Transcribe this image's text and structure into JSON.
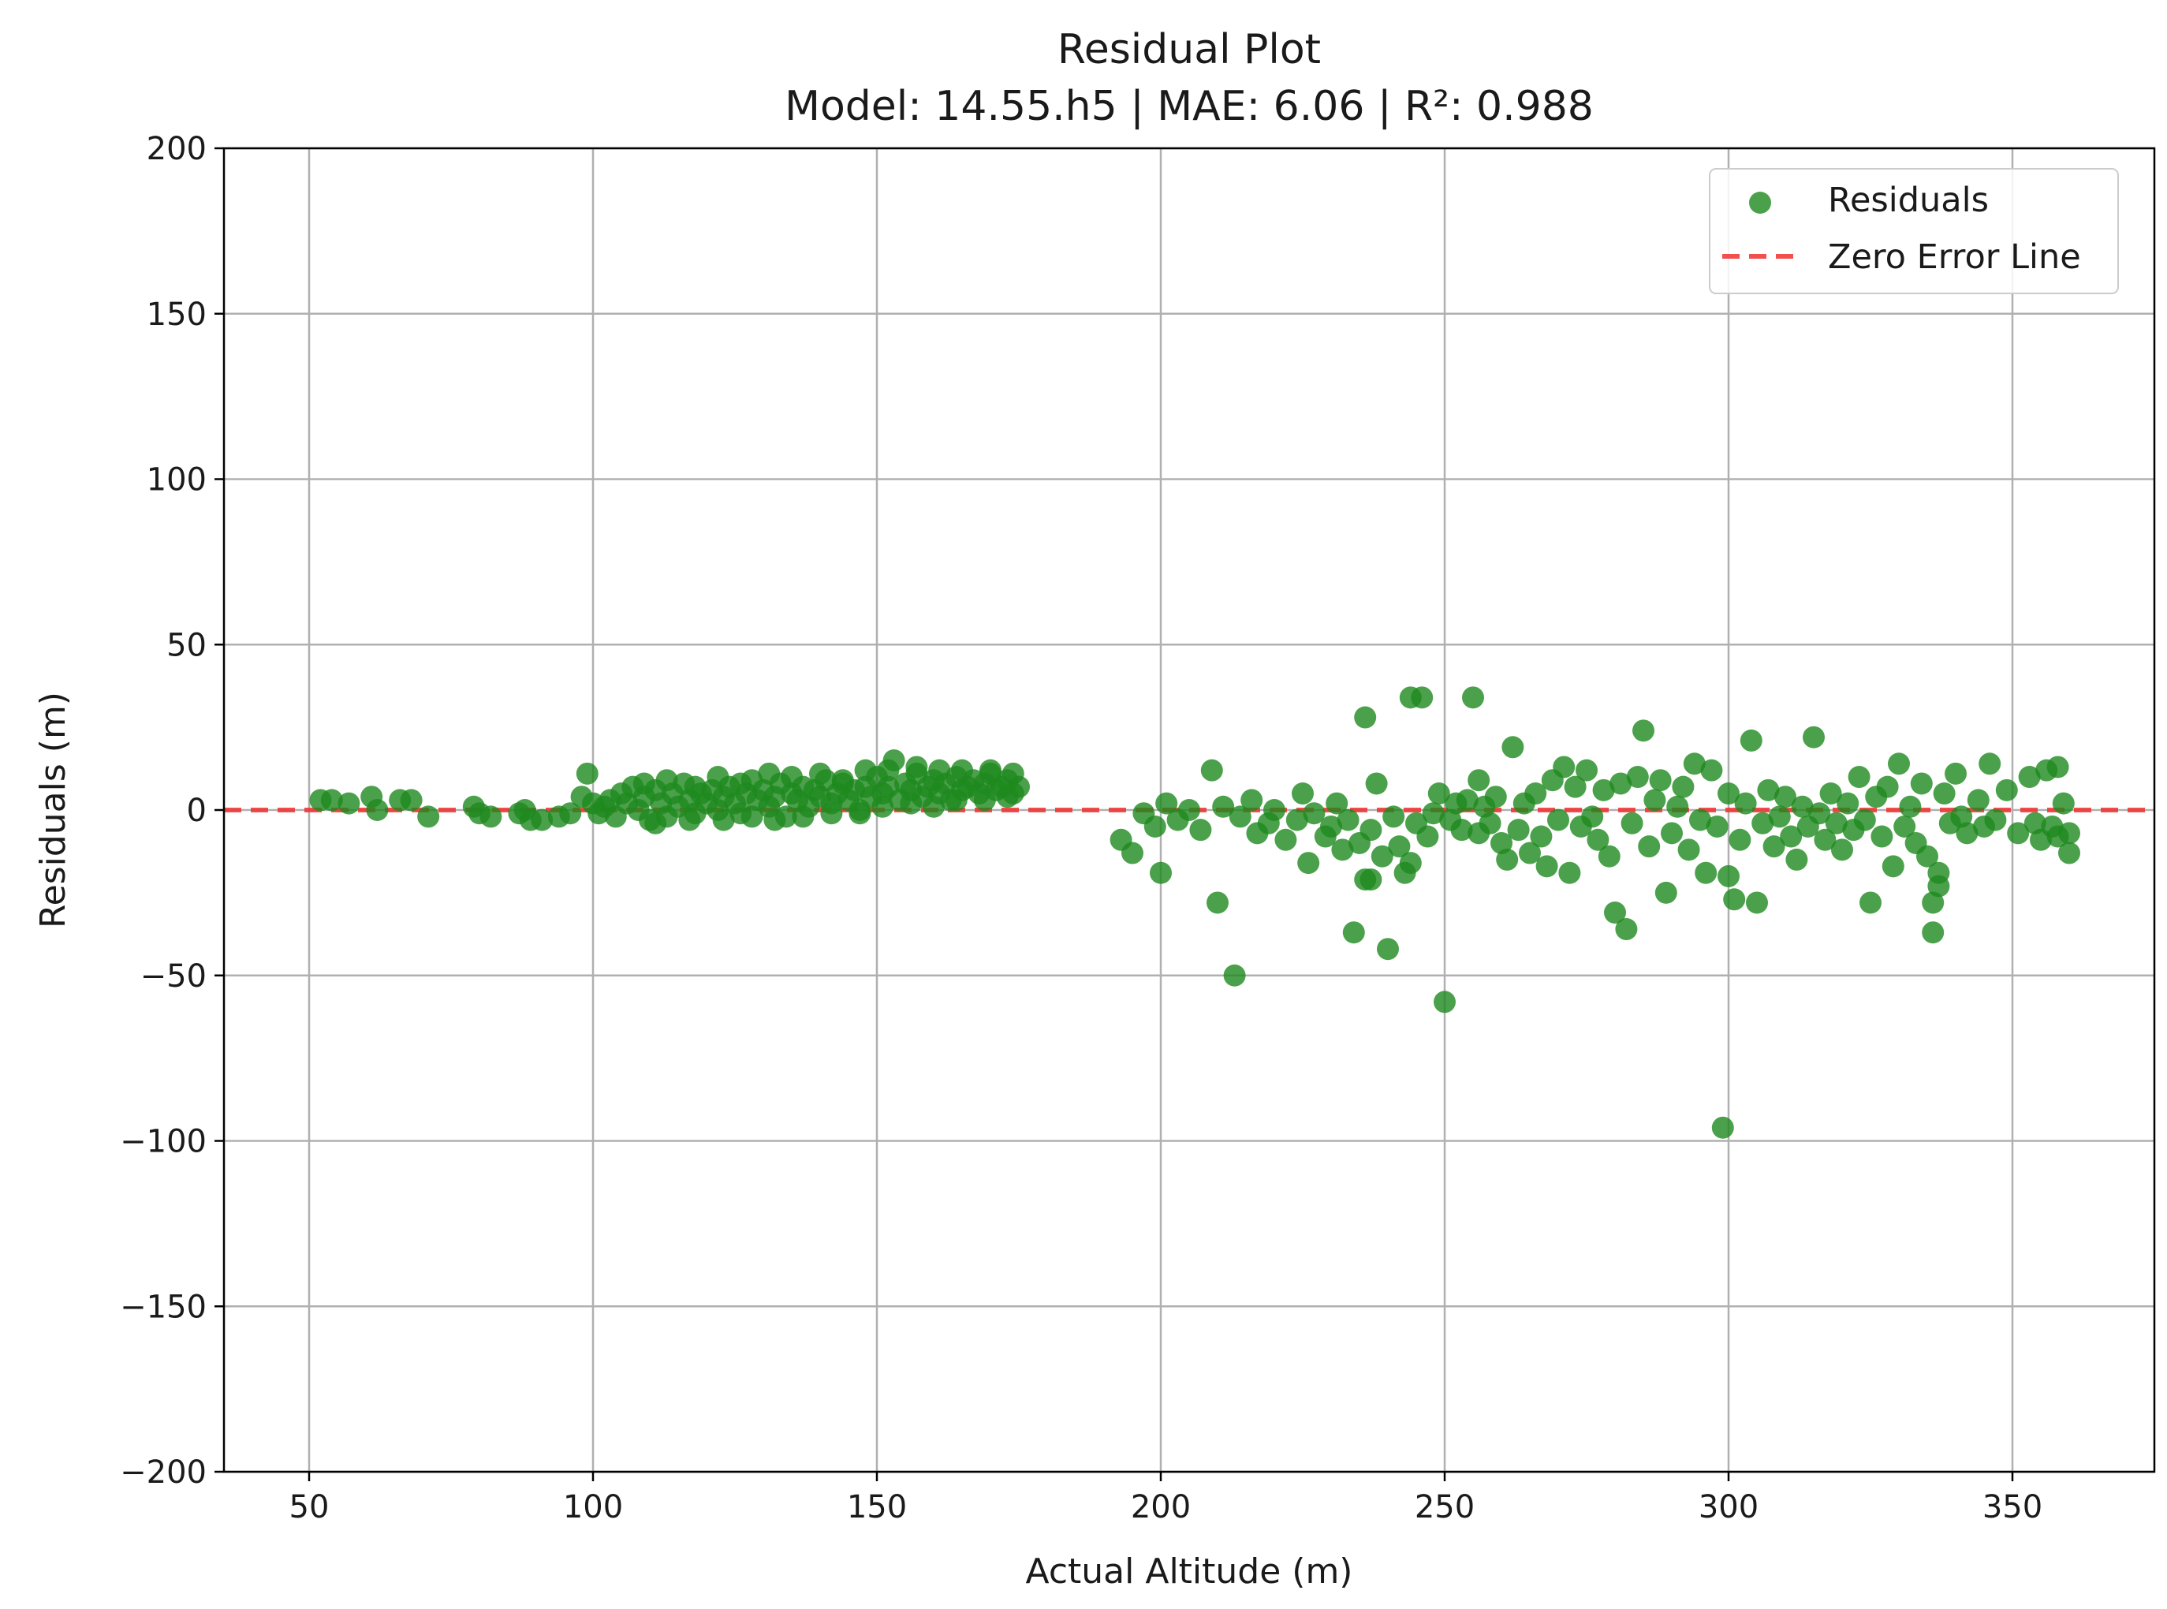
{
  "colors": {
    "points": "#1e8a1e",
    "zero_line": "#f03030",
    "grid": "#b0b0b0",
    "axes": "#000000"
  },
  "chart_data": {
    "type": "scatter",
    "title": "Residual Plot",
    "subtitle": "Model: 14.55.h5 | MAE: 6.06 | R²: 0.988",
    "xlabel": "Actual Altitude (m)",
    "ylabel": "Residuals (m)",
    "xlim": [
      35,
      375
    ],
    "ylim": [
      -200,
      200
    ],
    "xticks": [
      50,
      100,
      150,
      200,
      250,
      300,
      350
    ],
    "yticks": [
      -200,
      -150,
      -100,
      -50,
      0,
      50,
      100,
      150,
      200
    ],
    "xtick_labels": [
      "50",
      "100",
      "150",
      "200",
      "250",
      "300",
      "350"
    ],
    "ytick_labels": [
      "−200",
      "−150",
      "−100",
      "−50",
      "0",
      "50",
      "100",
      "150",
      "200"
    ],
    "grid": true,
    "legend_position": "top-right",
    "legend": {
      "scatter_label": "Residuals",
      "line_label": "Zero Error Line"
    },
    "reference_line": {
      "y": 0,
      "style": "dashed"
    },
    "series": [
      {
        "name": "Residuals",
        "points": [
          [
            52,
            3
          ],
          [
            54,
            3
          ],
          [
            57,
            2
          ],
          [
            61,
            4
          ],
          [
            62,
            0
          ],
          [
            66,
            3
          ],
          [
            68,
            3
          ],
          [
            71,
            -2
          ],
          [
            79,
            1
          ],
          [
            80,
            -1
          ],
          [
            82,
            -2
          ],
          [
            87,
            -1
          ],
          [
            88,
            0
          ],
          [
            89,
            -3
          ],
          [
            91,
            -3
          ],
          [
            94,
            -2
          ],
          [
            96,
            -1
          ],
          [
            98,
            4
          ],
          [
            99,
            11
          ],
          [
            100,
            2
          ],
          [
            101,
            -1
          ],
          [
            102,
            1
          ],
          [
            103,
            3
          ],
          [
            104,
            -2
          ],
          [
            105,
            5
          ],
          [
            106,
            2
          ],
          [
            107,
            7
          ],
          [
            108,
            0
          ],
          [
            109,
            4
          ],
          [
            110,
            -3
          ],
          [
            111,
            6
          ],
          [
            112,
            2
          ],
          [
            113,
            -2
          ],
          [
            114,
            5
          ],
          [
            115,
            1
          ],
          [
            116,
            8
          ],
          [
            117,
            3
          ],
          [
            118,
            -1
          ],
          [
            119,
            5
          ],
          [
            120,
            2
          ],
          [
            121,
            6
          ],
          [
            122,
            0
          ],
          [
            123,
            4
          ],
          [
            124,
            7
          ],
          [
            125,
            2
          ],
          [
            126,
            -1
          ],
          [
            127,
            5
          ],
          [
            128,
            9
          ],
          [
            129,
            3
          ],
          [
            130,
            6
          ],
          [
            131,
            1
          ],
          [
            132,
            4
          ],
          [
            133,
            8
          ],
          [
            134,
            -2
          ],
          [
            135,
            5
          ],
          [
            136,
            3
          ],
          [
            137,
            7
          ],
          [
            138,
            1
          ],
          [
            139,
            6
          ],
          [
            140,
            4
          ],
          [
            141,
            9
          ],
          [
            142,
            2
          ],
          [
            143,
            5
          ],
          [
            144,
            8
          ],
          [
            145,
            3
          ],
          [
            146,
            6
          ],
          [
            147,
            0
          ],
          [
            148,
            7
          ],
          [
            149,
            4
          ],
          [
            150,
            10
          ],
          [
            151,
            5
          ],
          [
            152,
            7
          ],
          [
            153,
            15
          ],
          [
            154,
            3
          ],
          [
            155,
            8
          ],
          [
            156,
            6
          ],
          [
            157,
            11
          ],
          [
            158,
            4
          ],
          [
            159,
            7
          ],
          [
            160,
            9
          ],
          [
            161,
            5
          ],
          [
            162,
            8
          ],
          [
            163,
            3
          ],
          [
            164,
            10
          ],
          [
            165,
            6
          ],
          [
            166,
            7
          ],
          [
            167,
            9
          ],
          [
            168,
            5
          ],
          [
            169,
            8
          ],
          [
            170,
            11
          ],
          [
            171,
            6
          ],
          [
            172,
            7
          ],
          [
            173,
            9
          ],
          [
            174,
            5
          ],
          [
            175,
            7
          ],
          [
            109,
            8
          ],
          [
            113,
            9
          ],
          [
            118,
            7
          ],
          [
            122,
            10
          ],
          [
            126,
            8
          ],
          [
            131,
            11
          ],
          [
            135,
            10
          ],
          [
            140,
            11
          ],
          [
            144,
            9
          ],
          [
            148,
            12
          ],
          [
            152,
            12
          ],
          [
            157,
            13
          ],
          [
            161,
            12
          ],
          [
            165,
            12
          ],
          [
            170,
            12
          ],
          [
            174,
            11
          ],
          [
            111,
            -4
          ],
          [
            117,
            -3
          ],
          [
            123,
            -3
          ],
          [
            128,
            -2
          ],
          [
            132,
            -3
          ],
          [
            137,
            -2
          ],
          [
            142,
            -1
          ],
          [
            147,
            -1
          ],
          [
            151,
            1
          ],
          [
            156,
            2
          ],
          [
            160,
            1
          ],
          [
            164,
            3
          ],
          [
            169,
            3
          ],
          [
            173,
            4
          ],
          [
            193,
            -9
          ],
          [
            195,
            -13
          ],
          [
            197,
            -1
          ],
          [
            199,
            -5
          ],
          [
            200,
            -19
          ],
          [
            201,
            2
          ],
          [
            203,
            -3
          ],
          [
            205,
            0
          ],
          [
            207,
            -6
          ],
          [
            209,
            12
          ],
          [
            210,
            -28
          ],
          [
            211,
            1
          ],
          [
            213,
            -50
          ],
          [
            214,
            -2
          ],
          [
            216,
            3
          ],
          [
            217,
            -7
          ],
          [
            219,
            -4
          ],
          [
            220,
            0
          ],
          [
            222,
            -9
          ],
          [
            224,
            -3
          ],
          [
            225,
            5
          ],
          [
            226,
            -16
          ],
          [
            227,
            -1
          ],
          [
            229,
            -8
          ],
          [
            230,
            -5
          ],
          [
            231,
            2
          ],
          [
            232,
            -12
          ],
          [
            233,
            -3
          ],
          [
            234,
            -37
          ],
          [
            235,
            -10
          ],
          [
            236,
            28
          ],
          [
            236,
            -21
          ],
          [
            237,
            -21
          ],
          [
            237,
            -6
          ],
          [
            238,
            8
          ],
          [
            239,
            -14
          ],
          [
            240,
            -42
          ],
          [
            241,
            -2
          ],
          [
            242,
            -11
          ],
          [
            243,
            -19
          ],
          [
            244,
            34
          ],
          [
            244,
            -16
          ],
          [
            245,
            -4
          ],
          [
            246,
            34
          ],
          [
            247,
            -8
          ],
          [
            248,
            -1
          ],
          [
            249,
            5
          ],
          [
            250,
            -58
          ],
          [
            251,
            -3
          ],
          [
            252,
            2
          ],
          [
            253,
            -6
          ],
          [
            254,
            3
          ],
          [
            255,
            34
          ],
          [
            256,
            9
          ],
          [
            256,
            -7
          ],
          [
            257,
            1
          ],
          [
            258,
            -4
          ],
          [
            259,
            4
          ],
          [
            260,
            -10
          ],
          [
            261,
            -15
          ],
          [
            262,
            19
          ],
          [
            263,
            -6
          ],
          [
            264,
            2
          ],
          [
            265,
            -13
          ],
          [
            266,
            5
          ],
          [
            267,
            -8
          ],
          [
            268,
            -17
          ],
          [
            269,
            9
          ],
          [
            270,
            -3
          ],
          [
            271,
            13
          ],
          [
            272,
            -19
          ],
          [
            273,
            7
          ],
          [
            274,
            -5
          ],
          [
            275,
            12
          ],
          [
            276,
            -2
          ],
          [
            277,
            -9
          ],
          [
            278,
            6
          ],
          [
            279,
            -14
          ],
          [
            280,
            -31
          ],
          [
            281,
            8
          ],
          [
            282,
            -36
          ],
          [
            283,
            -4
          ],
          [
            284,
            10
          ],
          [
            285,
            24
          ],
          [
            286,
            -11
          ],
          [
            287,
            3
          ],
          [
            288,
            9
          ],
          [
            289,
            -25
          ],
          [
            290,
            -7
          ],
          [
            291,
            1
          ],
          [
            292,
            7
          ],
          [
            293,
            -12
          ],
          [
            294,
            14
          ],
          [
            295,
            -3
          ],
          [
            296,
            -19
          ],
          [
            297,
            12
          ],
          [
            298,
            -5
          ],
          [
            299,
            -96
          ],
          [
            300,
            -20
          ],
          [
            300,
            5
          ],
          [
            301,
            -27
          ],
          [
            302,
            -9
          ],
          [
            303,
            2
          ],
          [
            304,
            21
          ],
          [
            305,
            -28
          ],
          [
            306,
            -4
          ],
          [
            307,
            6
          ],
          [
            308,
            -11
          ],
          [
            309,
            -2
          ],
          [
            310,
            4
          ],
          [
            311,
            -8
          ],
          [
            312,
            -15
          ],
          [
            313,
            1
          ],
          [
            314,
            -5
          ],
          [
            315,
            22
          ],
          [
            316,
            -1
          ],
          [
            317,
            -9
          ],
          [
            318,
            5
          ],
          [
            319,
            -4
          ],
          [
            320,
            -12
          ],
          [
            321,
            2
          ],
          [
            322,
            -6
          ],
          [
            323,
            10
          ],
          [
            324,
            -3
          ],
          [
            325,
            -28
          ],
          [
            326,
            4
          ],
          [
            327,
            -8
          ],
          [
            328,
            7
          ],
          [
            329,
            -17
          ],
          [
            330,
            14
          ],
          [
            331,
            -5
          ],
          [
            332,
            1
          ],
          [
            333,
            -10
          ],
          [
            334,
            8
          ],
          [
            335,
            -14
          ],
          [
            336,
            -28
          ],
          [
            336,
            -37
          ],
          [
            337,
            -23
          ],
          [
            337,
            -19
          ],
          [
            338,
            5
          ],
          [
            339,
            -4
          ],
          [
            340,
            11
          ],
          [
            341,
            -2
          ],
          [
            342,
            -7
          ],
          [
            344,
            3
          ],
          [
            345,
            -5
          ],
          [
            346,
            14
          ],
          [
            347,
            -3
          ],
          [
            349,
            6
          ],
          [
            351,
            -7
          ],
          [
            353,
            10
          ],
          [
            354,
            -4
          ],
          [
            355,
            -9
          ],
          [
            356,
            12
          ],
          [
            357,
            -5
          ],
          [
            358,
            13
          ],
          [
            358,
            -8
          ],
          [
            359,
            2
          ],
          [
            360,
            -13
          ],
          [
            360,
            -7
          ]
        ]
      }
    ]
  }
}
